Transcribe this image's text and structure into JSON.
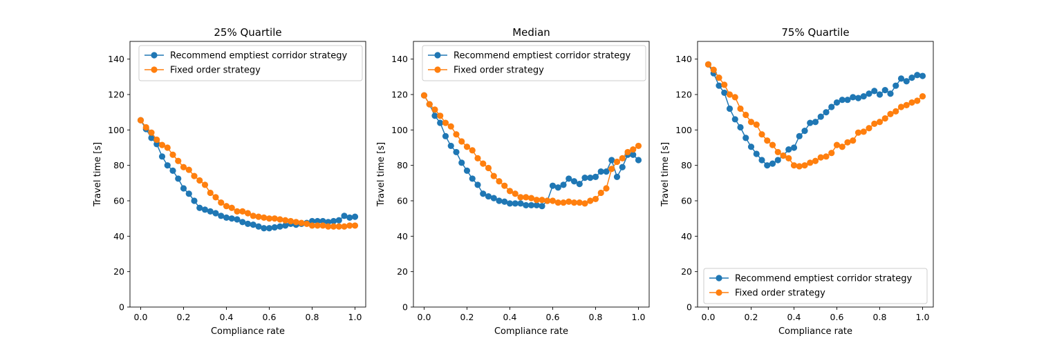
{
  "chart_data": [
    {
      "type": "line",
      "title": "25% Quartile",
      "xlabel": "Compliance rate",
      "ylabel": "Travel time [s]",
      "xlim": [
        -0.05,
        1.05
      ],
      "ylim": [
        0,
        150
      ],
      "xticks": [
        "0.0",
        "0.2",
        "0.4",
        "0.6",
        "0.8",
        "1.0"
      ],
      "yticks": [
        "0",
        "20",
        "40",
        "60",
        "80",
        "100",
        "120",
        "140"
      ],
      "legend_position": "top-right",
      "x": [
        0.0,
        0.025,
        0.05,
        0.075,
        0.1,
        0.125,
        0.15,
        0.175,
        0.2,
        0.225,
        0.25,
        0.275,
        0.3,
        0.325,
        0.35,
        0.375,
        0.4,
        0.425,
        0.45,
        0.475,
        0.5,
        0.525,
        0.55,
        0.575,
        0.6,
        0.625,
        0.65,
        0.675,
        0.7,
        0.725,
        0.75,
        0.775,
        0.8,
        0.825,
        0.85,
        0.875,
        0.9,
        0.925,
        0.95,
        0.975,
        1.0
      ],
      "series": [
        {
          "name": "Recommend emptiest corridor strategy",
          "color": "#1f77b4",
          "values": [
            105.5,
            100.5,
            95.5,
            92,
            85,
            80,
            77,
            72.5,
            67,
            64,
            60,
            56,
            55,
            54,
            53,
            51.5,
            50.5,
            50,
            49.5,
            48,
            47,
            46.5,
            45.5,
            44.5,
            44.5,
            45,
            45.5,
            46,
            47,
            46.5,
            47,
            47.5,
            48.5,
            48.5,
            48.5,
            48,
            48.5,
            49,
            51.5,
            50.5,
            51
          ]
        },
        {
          "name": "Fixed order strategy",
          "color": "#ff7f0e",
          "values": [
            105.5,
            101.5,
            98.5,
            94.5,
            91.5,
            90,
            86,
            82.5,
            79,
            77.5,
            74,
            71.5,
            69,
            64.5,
            62,
            59,
            57,
            56,
            54,
            54,
            53,
            51.5,
            51,
            50.5,
            50,
            50,
            49.5,
            49,
            48.5,
            48,
            47.5,
            47,
            46,
            46,
            46,
            45.5,
            45.5,
            45.5,
            45.5,
            46,
            46
          ]
        }
      ]
    },
    {
      "type": "line",
      "title": "Median",
      "xlabel": "Compliance rate",
      "ylabel": "Travel time [s]",
      "xlim": [
        -0.05,
        1.05
      ],
      "ylim": [
        0,
        150
      ],
      "xticks": [
        "0.0",
        "0.2",
        "0.4",
        "0.6",
        "0.8",
        "1.0"
      ],
      "yticks": [
        "0",
        "20",
        "40",
        "60",
        "80",
        "100",
        "120",
        "140"
      ],
      "legend_position": "top-right",
      "x": [
        0.0,
        0.025,
        0.05,
        0.075,
        0.1,
        0.125,
        0.15,
        0.175,
        0.2,
        0.225,
        0.25,
        0.275,
        0.3,
        0.325,
        0.35,
        0.375,
        0.4,
        0.425,
        0.45,
        0.475,
        0.5,
        0.525,
        0.55,
        0.575,
        0.6,
        0.625,
        0.65,
        0.675,
        0.7,
        0.725,
        0.75,
        0.775,
        0.8,
        0.825,
        0.85,
        0.875,
        0.9,
        0.925,
        0.95,
        0.975,
        1.0
      ],
      "series": [
        {
          "name": "Recommend emptiest corridor strategy",
          "color": "#1f77b4",
          "values": [
            119.5,
            114.5,
            108,
            104,
            96.5,
            91,
            87.5,
            81.5,
            77,
            72.5,
            69,
            64,
            62.5,
            61.5,
            60,
            59.5,
            58.5,
            58.5,
            58.5,
            57.5,
            57.5,
            57.5,
            57,
            60,
            68.5,
            67.5,
            69,
            72.5,
            71,
            69.5,
            73,
            73,
            73.5,
            76.5,
            76.5,
            83,
            73.5,
            79,
            86,
            86,
            83
          ]
        },
        {
          "name": "Fixed order strategy",
          "color": "#ff7f0e",
          "values": [
            119.5,
            114.5,
            111.5,
            108,
            104,
            102,
            97.5,
            93.5,
            90.5,
            88.5,
            84,
            81,
            78.5,
            74,
            71,
            68.5,
            65.5,
            64,
            62,
            62,
            61.5,
            60.5,
            60.5,
            60,
            60,
            59,
            59,
            59.5,
            59,
            59,
            58.5,
            60,
            61,
            64.5,
            67,
            78,
            82,
            84,
            87.5,
            89,
            91
          ]
        }
      ]
    },
    {
      "type": "line",
      "title": "75% Quartile",
      "xlabel": "Compliance rate",
      "ylabel": "Travel time [s]",
      "xlim": [
        -0.05,
        1.05
      ],
      "ylim": [
        0,
        150
      ],
      "xticks": [
        "0.0",
        "0.2",
        "0.4",
        "0.6",
        "0.8",
        "1.0"
      ],
      "yticks": [
        "0",
        "20",
        "40",
        "60",
        "80",
        "100",
        "120",
        "140"
      ],
      "legend_position": "bottom-center",
      "x": [
        0.0,
        0.025,
        0.05,
        0.075,
        0.1,
        0.125,
        0.15,
        0.175,
        0.2,
        0.225,
        0.25,
        0.275,
        0.3,
        0.325,
        0.35,
        0.375,
        0.4,
        0.425,
        0.45,
        0.475,
        0.5,
        0.525,
        0.55,
        0.575,
        0.6,
        0.625,
        0.65,
        0.675,
        0.7,
        0.725,
        0.75,
        0.775,
        0.8,
        0.825,
        0.85,
        0.875,
        0.9,
        0.925,
        0.95,
        0.975,
        1.0
      ],
      "series": [
        {
          "name": "Recommend emptiest corridor strategy",
          "color": "#1f77b4",
          "values": [
            137,
            132,
            125,
            121,
            112,
            106,
            101.5,
            95.5,
            90.5,
            86.5,
            83,
            80,
            81,
            83,
            85.5,
            89,
            90,
            96.5,
            99.5,
            104,
            104.5,
            107.5,
            110,
            113,
            115.5,
            117,
            117,
            118.5,
            118,
            119,
            120.5,
            122,
            120,
            122.5,
            120.5,
            125,
            129,
            127.5,
            129.5,
            131,
            130.5
          ]
        },
        {
          "name": "Fixed order strategy",
          "color": "#ff7f0e",
          "values": [
            137,
            134,
            129.5,
            125.5,
            120,
            118.5,
            112,
            108.5,
            104.5,
            103,
            97.5,
            94,
            91.5,
            87.5,
            85.5,
            84,
            80,
            79.5,
            80,
            81.5,
            82.5,
            84.5,
            85,
            87,
            91.5,
            90.5,
            93,
            94,
            98.5,
            99,
            101,
            103.5,
            104.5,
            106.5,
            109,
            110.5,
            113,
            114,
            115.5,
            116.5,
            119
          ]
        }
      ]
    }
  ]
}
